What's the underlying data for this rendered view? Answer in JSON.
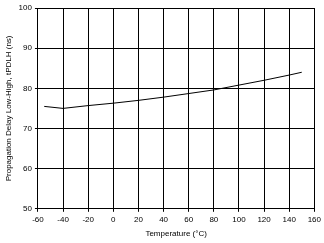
{
  "chart_data": {
    "type": "line",
    "x_label": "Temperature (°C)",
    "y_label": "Propagation Delay Low-High, tPDLH (ns)",
    "x": [
      -55,
      -40,
      -20,
      0,
      20,
      40,
      60,
      80,
      100,
      120,
      140,
      150
    ],
    "values": [
      75.5,
      75,
      75.7,
      76.3,
      77,
      77.8,
      78.7,
      79.6,
      80.8,
      82,
      83.3,
      84
    ],
    "color": "#000000",
    "xlim": [
      -60,
      160
    ],
    "xticks": [
      -60,
      -40,
      -20,
      0,
      20,
      40,
      60,
      80,
      100,
      120,
      140,
      160
    ],
    "ylim": [
      50,
      100
    ],
    "yticks": [
      50,
      60,
      70,
      80,
      90,
      100
    ],
    "grid": true
  }
}
